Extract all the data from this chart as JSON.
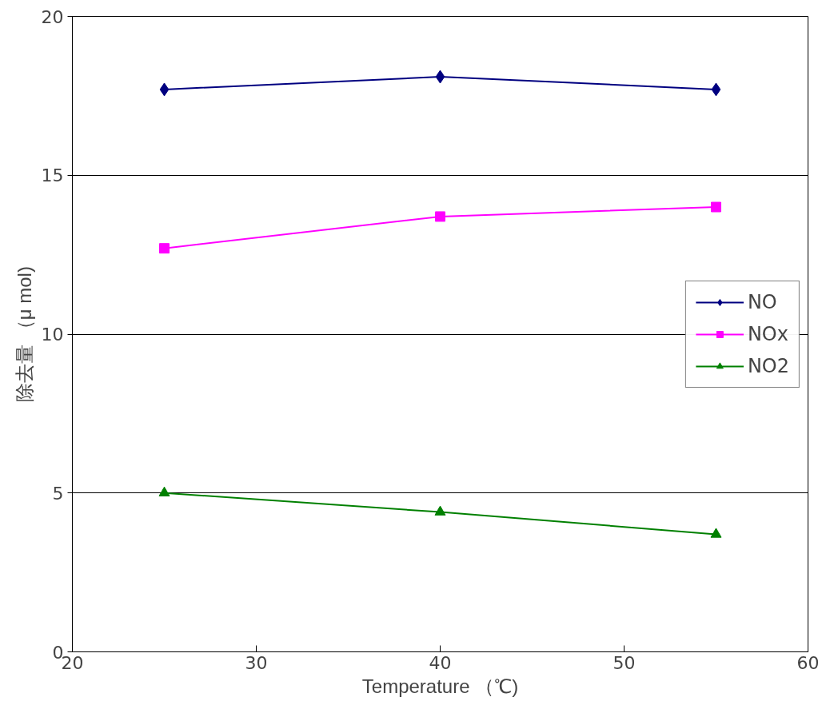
{
  "chart_data": {
    "type": "line",
    "xlabel": "Temperature （℃)",
    "ylabel": "除去量 （μ mol)",
    "x": [
      25,
      40,
      55
    ],
    "xlim": [
      20,
      60
    ],
    "xticks": [
      20,
      30,
      40,
      50,
      60
    ],
    "ylim": [
      0,
      20
    ],
    "yticks": [
      0,
      5,
      10,
      15,
      20
    ],
    "grid": "y",
    "legend": "right",
    "line_style": "solid",
    "series": [
      {
        "name": "NO",
        "color": "#000080",
        "marker": "diamond",
        "values": [
          17.7,
          18.1,
          17.7
        ]
      },
      {
        "name": "NOx",
        "color": "#ff00ff",
        "marker": "square",
        "values": [
          12.7,
          13.7,
          14.0
        ]
      },
      {
        "name": "NO2",
        "color": "#008000",
        "marker": "triangle",
        "values": [
          5.0,
          4.4,
          3.7
        ]
      }
    ]
  }
}
